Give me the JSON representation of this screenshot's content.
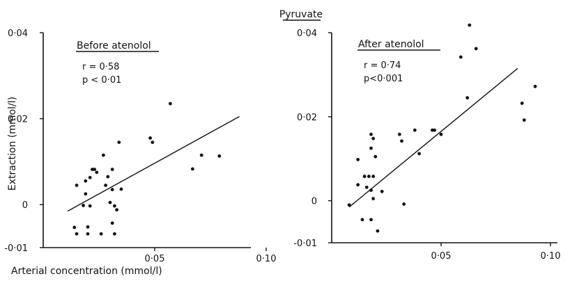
{
  "figure_title": "Pyruvate",
  "chart_data": [
    {
      "type": "scatter",
      "panel_label": "Before atenolol",
      "stats": [
        "r = 0·58",
        "p < 0·01"
      ],
      "ylabel": "Extraction (mmol/l)",
      "xlabel": "Arterial concentration (mmol/l)",
      "xlim": [
        0,
        0.1
      ],
      "ylim": [
        -0.01,
        0.04
      ],
      "x_tick_values": [
        0.05,
        0.1
      ],
      "x_tick_labels": [
        "0·05",
        "0·10"
      ],
      "y_tick_values": [
        -0.01,
        0,
        0.02,
        0.04
      ],
      "y_tick_labels": [
        "-0·01",
        "0",
        "0·02",
        "0·04"
      ],
      "fit_line": [
        [
          0.011,
          -0.0015
        ],
        [
          0.088,
          0.0205
        ]
      ],
      "points": [
        [
          0.014,
          -0.0053
        ],
        [
          0.015,
          -0.0068
        ],
        [
          0.015,
          0.0045
        ],
        [
          0.018,
          -0.0002
        ],
        [
          0.019,
          0.0025
        ],
        [
          0.019,
          0.0055
        ],
        [
          0.02,
          -0.0068
        ],
        [
          0.02,
          -0.0052
        ],
        [
          0.021,
          0.0063
        ],
        [
          0.021,
          -0.0003
        ],
        [
          0.022,
          0.0082
        ],
        [
          0.023,
          0.0082
        ],
        [
          0.024,
          0.0075
        ],
        [
          0.026,
          -0.0068
        ],
        [
          0.027,
          0.0115
        ],
        [
          0.028,
          0.0045
        ],
        [
          0.029,
          0.0065
        ],
        [
          0.03,
          0.0005
        ],
        [
          0.031,
          0.0082
        ],
        [
          0.031,
          0.0035
        ],
        [
          0.031,
          -0.0043
        ],
        [
          0.032,
          -0.0068
        ],
        [
          0.032,
          -0.0003
        ],
        [
          0.033,
          -0.0012
        ],
        [
          0.034,
          0.0145
        ],
        [
          0.035,
          0.0036
        ],
        [
          0.048,
          0.0155
        ],
        [
          0.049,
          0.0145
        ],
        [
          0.057,
          0.0235
        ],
        [
          0.067,
          0.0083
        ],
        [
          0.071,
          0.0115
        ],
        [
          0.079,
          0.0113
        ]
      ]
    },
    {
      "type": "scatter",
      "panel_label": "After atenolol",
      "stats": [
        "r = 0·74",
        "p<0·001"
      ],
      "ylabel": "",
      "xlabel": "",
      "xlim": [
        0,
        0.1
      ],
      "ylim": [
        -0.01,
        0.04
      ],
      "x_tick_values": [
        0.05,
        0.1
      ],
      "x_tick_labels": [
        "0·05",
        "0·10"
      ],
      "y_tick_values": [
        -0.01,
        0,
        0.02,
        0.04
      ],
      "y_tick_labels": [
        "-0·01",
        "0",
        "0·02",
        "0·04"
      ],
      "fit_line": [
        [
          0.008,
          -0.0015
        ],
        [
          0.085,
          0.0315
        ]
      ],
      "points": [
        [
          0.008,
          -0.001
        ],
        [
          0.012,
          0.0098
        ],
        [
          0.012,
          0.0038
        ],
        [
          0.014,
          -0.0045
        ],
        [
          0.015,
          0.0058
        ],
        [
          0.016,
          0.0032
        ],
        [
          0.017,
          0.0058
        ],
        [
          0.018,
          0.0158
        ],
        [
          0.018,
          0.0125
        ],
        [
          0.018,
          0.0025
        ],
        [
          0.018,
          -0.0045
        ],
        [
          0.019,
          0.0148
        ],
        [
          0.019,
          0.0058
        ],
        [
          0.019,
          0.0005
        ],
        [
          0.02,
          0.0105
        ],
        [
          0.021,
          -0.0072
        ],
        [
          0.023,
          0.0022
        ],
        [
          0.031,
          0.0158
        ],
        [
          0.032,
          0.0142
        ],
        [
          0.033,
          -0.0008
        ],
        [
          0.038,
          0.0168
        ],
        [
          0.04,
          0.0112
        ],
        [
          0.046,
          0.0168
        ],
        [
          0.047,
          0.0168
        ],
        [
          0.05,
          0.0158
        ],
        [
          0.059,
          0.0342
        ],
        [
          0.062,
          0.0245
        ],
        [
          0.063,
          0.0418
        ],
        [
          0.066,
          0.0362
        ],
        [
          0.087,
          0.0232
        ],
        [
          0.088,
          0.0192
        ],
        [
          0.093,
          0.0272
        ]
      ]
    }
  ]
}
